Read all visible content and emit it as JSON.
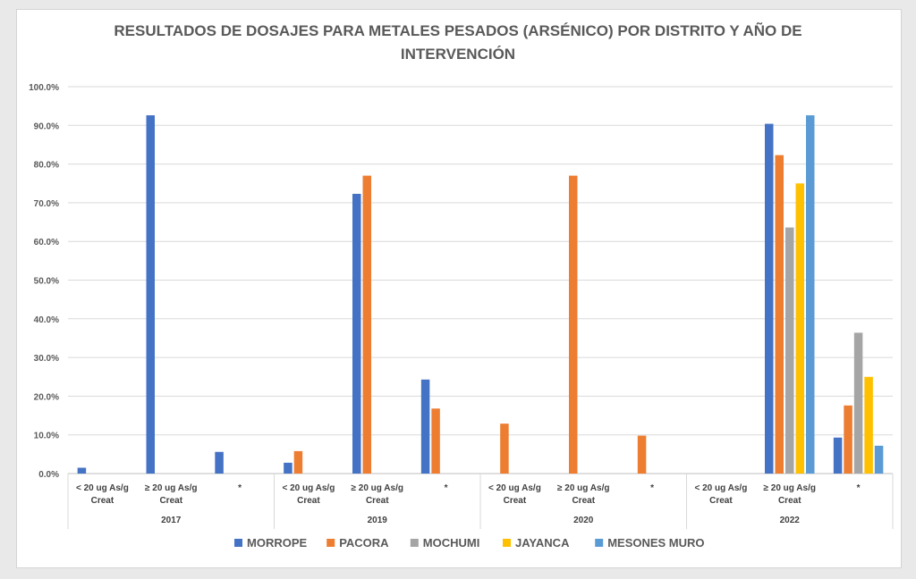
{
  "chart_data": {
    "type": "bar",
    "title_line1": "RESULTADOS DE DOSAJES PARA METALES PESADOS (ARSÉNICO) POR DISTRITO Y AÑO DE",
    "title_line2": "INTERVENCIÓN",
    "xlabel": "",
    "ylabel": "",
    "ylim": [
      0,
      100
    ],
    "yticks": [
      "0.0%",
      "10.0%",
      "20.0%",
      "30.0%",
      "40.0%",
      "50.0%",
      "60.0%",
      "70.0%",
      "80.0%",
      "90.0%",
      "100.0%"
    ],
    "grid": true,
    "legend_position": "bottom",
    "groups": [
      "2017",
      "2019",
      "2020",
      "2022"
    ],
    "subcategories": [
      [
        "< 20 ug As/g",
        "Creat"
      ],
      [
        "≥ 20 ug As/g",
        "Creat"
      ],
      [
        "*",
        ""
      ]
    ],
    "series": [
      {
        "name": "MORROPE",
        "color": "#4472C4",
        "values": [
          1.5,
          92.6,
          5.6,
          2.8,
          72.3,
          24.3,
          0,
          0,
          0,
          0,
          90.4,
          9.3
        ]
      },
      {
        "name": "PACORA",
        "color": "#ED7D31",
        "values": [
          0,
          0,
          0,
          5.8,
          77.0,
          16.8,
          12.9,
          77.0,
          9.8,
          0,
          82.3,
          17.6
        ]
      },
      {
        "name": "MOCHUMI",
        "color": "#A5A5A5",
        "values": [
          0,
          0,
          0,
          0,
          0,
          0,
          0,
          0,
          0,
          0,
          63.6,
          36.4
        ]
      },
      {
        "name": "JAYANCA",
        "color": "#FFC000",
        "values": [
          0,
          0,
          0,
          0,
          0,
          0,
          0,
          0,
          0,
          0,
          75.0,
          25.0
        ]
      },
      {
        "name": "MESONES MURO",
        "color": "#5B9BD5",
        "values": [
          0,
          0,
          0,
          0,
          0,
          0,
          0,
          0,
          0,
          0,
          92.6,
          7.2
        ]
      }
    ]
  }
}
